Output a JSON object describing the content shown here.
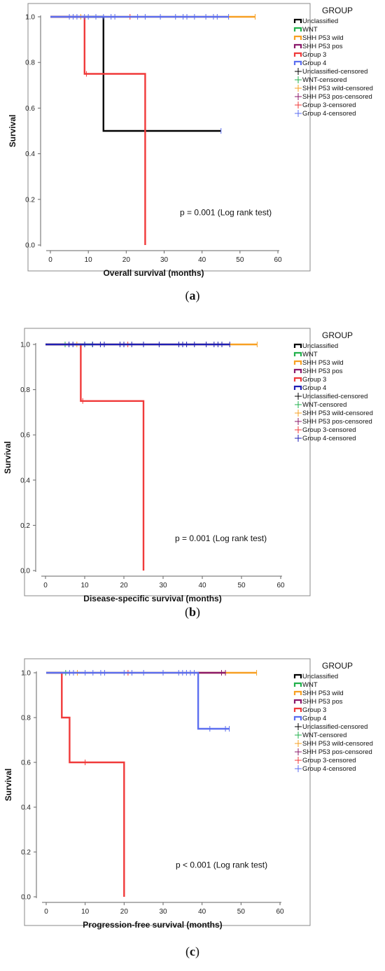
{
  "colors": {
    "Unclassified": "#000000",
    "WNT": "#22b14c",
    "SHH P53 wild": "#f7a023",
    "SHH P53 pos": "#8b1a6b",
    "Group 3": "#f03a3a",
    "Group 4": "#5b6ef0",
    "Group 4 (b)": "#1f1fb4"
  },
  "chart_data": [
    {
      "type": "line",
      "panel": "(a)",
      "panel_prefix": "(",
      "panel_letter": "a",
      "panel_suffix": ")",
      "xlabel": "Overall survival (months)",
      "ylabel": "Survival",
      "xlim": [
        0,
        60
      ],
      "ylim": [
        0,
        1
      ],
      "xticks": [
        "0",
        "10",
        "20",
        "30",
        "40",
        "50",
        "60"
      ],
      "yticks": [
        "0.0",
        "0.2",
        "0.4",
        "0.6",
        "0.8",
        "1.0"
      ],
      "annotation": "p = 0.001 (Log rank test)",
      "legend_title": "GROUP",
      "legend": [
        "Unclassified",
        "WNT",
        "SHH P53 wild",
        "SHH P53 pos",
        "Group 3",
        "Group 4",
        "Unclassified-censored",
        "WNT-censored",
        "SHH P53 wild-censored",
        "SHH P53 pos-censored",
        "Group 3-censored",
        "Group 4-censored"
      ],
      "series": [
        {
          "name": "SHH P53 wild",
          "color": "SHH P53 wild",
          "steps": [
            [
              0,
              1.0
            ],
            [
              54,
              1.0
            ]
          ],
          "censored": [
            [
              8,
              1.0
            ],
            [
              54,
              1.0
            ]
          ]
        },
        {
          "name": "Unclassified",
          "color": "Unclassified",
          "steps": [
            [
              0,
              1.0
            ],
            [
              14,
              1.0
            ],
            [
              14,
              0.5
            ],
            [
              45,
              0.5
            ]
          ],
          "censored": []
        },
        {
          "name": "Group 3",
          "color": "Group 3",
          "steps": [
            [
              0,
              1.0
            ],
            [
              9,
              1.0
            ],
            [
              9,
              0.75
            ],
            [
              25,
              0.75
            ],
            [
              25,
              0.0
            ]
          ],
          "censored": [
            [
              9.5,
              0.75
            ],
            [
              21,
              1.0
            ]
          ]
        },
        {
          "name": "Group 4",
          "color": "Group 4",
          "steps": [
            [
              0,
              1.0
            ],
            [
              47,
              1.0
            ]
          ],
          "censored": [
            [
              5,
              1.0
            ],
            [
              6,
              1.0
            ],
            [
              7,
              1.0
            ],
            [
              9,
              1.0
            ],
            [
              10,
              1.0
            ],
            [
              12,
              1.0
            ],
            [
              14,
              1.0
            ],
            [
              16,
              1.0
            ],
            [
              17,
              1.0
            ],
            [
              23,
              1.0
            ],
            [
              25,
              1.0
            ],
            [
              29,
              1.0
            ],
            [
              33,
              1.0
            ],
            [
              35,
              1.0
            ],
            [
              36,
              1.0
            ],
            [
              38,
              1.0
            ],
            [
              41,
              1.0
            ],
            [
              43,
              1.0
            ],
            [
              44,
              1.0
            ],
            [
              45,
              0.5
            ],
            [
              47,
              1.0
            ]
          ]
        }
      ]
    },
    {
      "type": "line",
      "panel": "(b)",
      "panel_prefix": "(",
      "panel_letter": "b",
      "panel_suffix": ")",
      "xlabel": "Disease-specific survival (months)",
      "ylabel": "Survival",
      "xlim": [
        0,
        60
      ],
      "ylim": [
        0,
        1
      ],
      "xticks": [
        "0",
        "10",
        "20",
        "30",
        "40",
        "50",
        "60"
      ],
      "yticks": [
        "0.0",
        "0.2",
        "0.4",
        "0.6",
        "0.8",
        "1.0"
      ],
      "annotation": "p = 0.001 (Log rank test)",
      "legend_title": "GROUP",
      "legend": [
        "Unclassified",
        "WNT",
        "SHH P53 wild",
        "SHH P53 pos",
        "Group 3",
        "Group 4",
        "Unclassified-censored",
        "WNT-censored",
        "SHH P53 wild-censored",
        "SHH P53 pos-censored",
        "Group 3-censored",
        "Group 4-censored"
      ],
      "series": [
        {
          "name": "SHH P53 wild",
          "color": "SHH P53 wild",
          "steps": [
            [
              0,
              1.0
            ],
            [
              54,
              1.0
            ]
          ],
          "censored": [
            [
              8,
              1.0
            ],
            [
              54,
              1.0
            ]
          ]
        },
        {
          "name": "WNT",
          "color": "WNT",
          "steps": [
            [
              0,
              1.0
            ],
            [
              12,
              1.0
            ]
          ],
          "censored": [
            [
              5,
              1.0
            ],
            [
              12,
              1.0
            ]
          ]
        },
        {
          "name": "Group 3",
          "color": "Group 3",
          "steps": [
            [
              0,
              1.0
            ],
            [
              9,
              1.0
            ],
            [
              9,
              0.75
            ],
            [
              25,
              0.75
            ],
            [
              25,
              0.0
            ]
          ],
          "censored": [
            [
              9.5,
              0.75
            ],
            [
              21,
              1.0
            ]
          ]
        },
        {
          "name": "Group 4",
          "color": "Group 4 (b)",
          "steps": [
            [
              0,
              1.0
            ],
            [
              47,
              1.0
            ]
          ],
          "censored": [
            [
              6,
              1.0
            ],
            [
              7,
              1.0
            ],
            [
              10,
              1.0
            ],
            [
              12,
              1.0
            ],
            [
              14,
              1.0
            ],
            [
              15,
              1.0
            ],
            [
              19,
              1.0
            ],
            [
              20,
              1.0
            ],
            [
              22,
              1.0
            ],
            [
              25,
              1.0
            ],
            [
              29,
              1.0
            ],
            [
              34,
              1.0
            ],
            [
              35,
              1.0
            ],
            [
              36,
              1.0
            ],
            [
              38,
              1.0
            ],
            [
              41,
              1.0
            ],
            [
              43,
              1.0
            ],
            [
              44,
              1.0
            ],
            [
              45,
              1.0
            ],
            [
              47,
              1.0
            ]
          ]
        }
      ]
    },
    {
      "type": "line",
      "panel": "(c)",
      "panel_prefix": "(",
      "panel_letter": "c",
      "panel_suffix": ")",
      "xlabel": "Progression-free survival (months)",
      "ylabel": "Survival",
      "xlim": [
        0,
        60
      ],
      "ylim": [
        0,
        1
      ],
      "xticks": [
        "0",
        "10",
        "20",
        "30",
        "40",
        "50",
        "60"
      ],
      "yticks": [
        "0.0",
        "0.2",
        "0.4",
        "0.6",
        "0.8",
        "1.0"
      ],
      "annotation": "p < 0.001 (Log rank test)",
      "legend_title": "GROUP",
      "legend": [
        "Unclassified",
        "WNT",
        "SHH P53 wild",
        "SHH P53 pos",
        "Group 3",
        "Group 4",
        "Unclassified-censored",
        "WNT-censored",
        "SHH P53 wild-censored",
        "SHH P53 pos-censored",
        "Group 3-censored",
        "Group 4-censored"
      ],
      "series": [
        {
          "name": "SHH P53 wild",
          "color": "SHH P53 wild",
          "steps": [
            [
              0,
              1.0
            ],
            [
              54,
              1.0
            ]
          ],
          "censored": [
            [
              8,
              1.0
            ],
            [
              54,
              1.0
            ]
          ]
        },
        {
          "name": "SHH P53 pos",
          "color": "SHH P53 pos",
          "steps": [
            [
              39,
              1.0
            ],
            [
              46,
              1.0
            ]
          ],
          "censored": [
            [
              45,
              1.0
            ],
            [
              46,
              1.0
            ]
          ]
        },
        {
          "name": "WNT",
          "color": "WNT",
          "steps": [
            [
              0,
              1.0
            ],
            [
              6,
              1.0
            ]
          ],
          "censored": [
            [
              5,
              1.0
            ]
          ]
        },
        {
          "name": "Group 3",
          "color": "Group 3",
          "steps": [
            [
              0,
              1.0
            ],
            [
              4,
              1.0
            ],
            [
              4,
              0.8
            ],
            [
              6,
              0.8
            ],
            [
              6,
              0.6
            ],
            [
              20,
              0.6
            ],
            [
              20,
              0.0
            ]
          ],
          "censored": [
            [
              10,
              0.6
            ],
            [
              21,
              1.0
            ]
          ]
        },
        {
          "name": "Group 4",
          "color": "Group 4",
          "steps": [
            [
              0,
              1.0
            ],
            [
              39,
              1.0
            ],
            [
              39,
              0.75
            ],
            [
              47,
              0.75
            ]
          ],
          "censored": [
            [
              6,
              1.0
            ],
            [
              7,
              1.0
            ],
            [
              10,
              1.0
            ],
            [
              12,
              1.0
            ],
            [
              14,
              1.0
            ],
            [
              15,
              1.0
            ],
            [
              20,
              1.0
            ],
            [
              22,
              1.0
            ],
            [
              25,
              1.0
            ],
            [
              30,
              1.0
            ],
            [
              34,
              1.0
            ],
            [
              35,
              1.0
            ],
            [
              36,
              1.0
            ],
            [
              37,
              1.0
            ],
            [
              38,
              1.0
            ],
            [
              42,
              0.75
            ],
            [
              46,
              0.75
            ],
            [
              47,
              0.75
            ]
          ]
        }
      ]
    }
  ]
}
